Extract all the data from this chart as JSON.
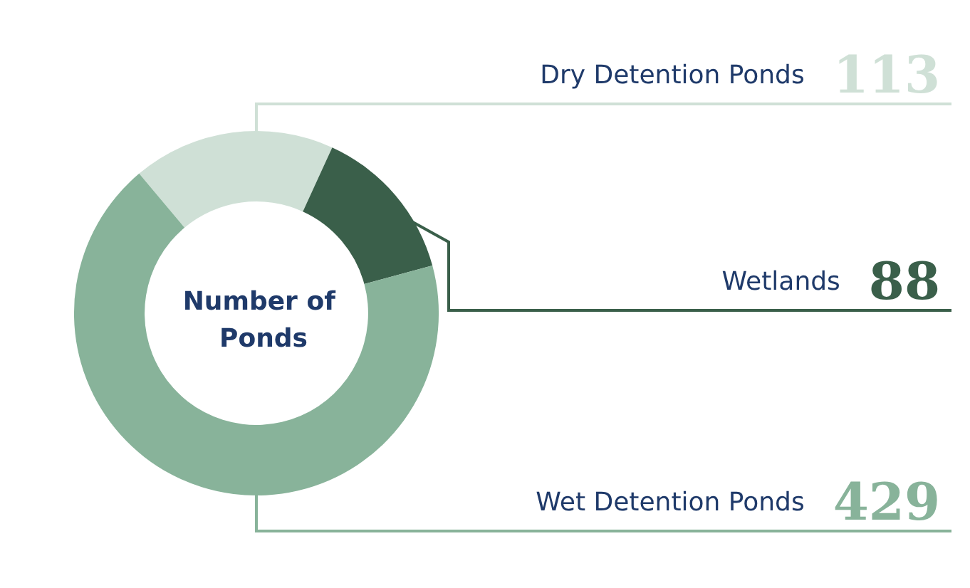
{
  "chart_data": {
    "type": "donut",
    "title": "Number of Ponds",
    "categories": [
      "Dry Detention Ponds",
      "Wetlands",
      "Wet Detention Ponds"
    ],
    "values": [
      113,
      88,
      429
    ],
    "colors": [
      "#cfe0d6",
      "#3a5f4a",
      "#88b39a"
    ],
    "data_labels": true,
    "legend": false
  }
}
